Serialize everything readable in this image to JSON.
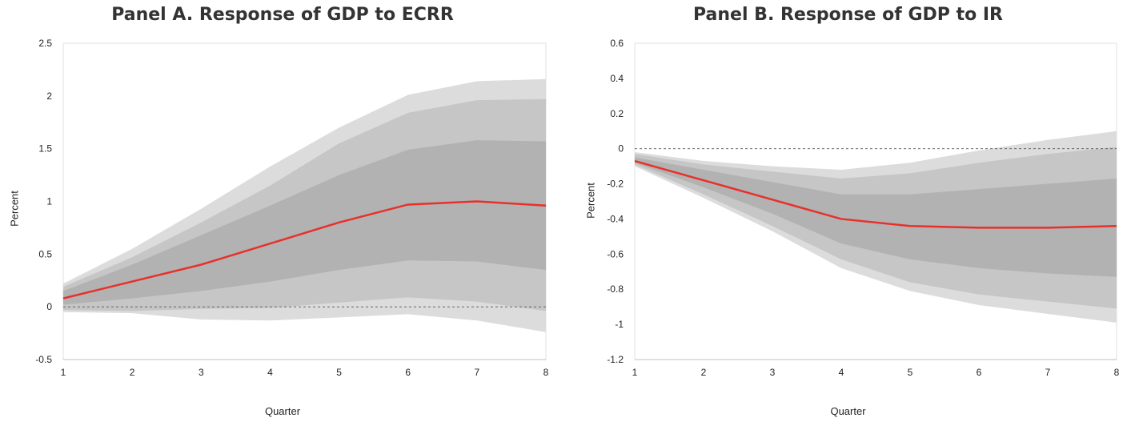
{
  "chart_data": [
    {
      "type": "area",
      "title": "Panel A. Response of GDP to ECRR",
      "xlabel": "Quarter",
      "ylabel": "Percent",
      "x": [
        1,
        2,
        3,
        4,
        5,
        6,
        7,
        8
      ],
      "xticks": [
        "1",
        "2",
        "3",
        "4",
        "5",
        "6",
        "7",
        "8"
      ],
      "ylim": [
        -0.5,
        2.5
      ],
      "yticks": [
        "-0.5",
        "0",
        "0.5",
        "1",
        "1.5",
        "2",
        "2.5"
      ],
      "ytick_values": [
        -0.5,
        0,
        0.5,
        1,
        1.5,
        2,
        2.5
      ],
      "bands": [
        {
          "lower": [
            -0.05,
            -0.06,
            -0.12,
            -0.13,
            -0.1,
            -0.07,
            -0.13,
            -0.24
          ],
          "upper": [
            0.22,
            0.55,
            0.93,
            1.33,
            1.7,
            2.01,
            2.14,
            2.16
          ],
          "color": "#dcdcdc"
        },
        {
          "lower": [
            -0.03,
            -0.04,
            -0.02,
            -0.01,
            0.04,
            0.09,
            0.05,
            -0.04
          ],
          "upper": [
            0.19,
            0.47,
            0.8,
            1.15,
            1.55,
            1.84,
            1.96,
            1.97
          ],
          "color": "#c6c6c6"
        },
        {
          "lower": [
            0.02,
            0.08,
            0.15,
            0.24,
            0.35,
            0.44,
            0.43,
            0.35
          ],
          "upper": [
            0.15,
            0.4,
            0.68,
            0.96,
            1.25,
            1.49,
            1.58,
            1.57
          ],
          "color": "#b2b2b2"
        }
      ],
      "series": [
        {
          "values": [
            0.08,
            0.24,
            0.4,
            0.6,
            0.8,
            0.97,
            1.0,
            0.96
          ],
          "color": "#e8302b"
        }
      ],
      "zero_line": 0,
      "grid": false
    },
    {
      "type": "area",
      "title": "Panel B. Response of GDP to IR",
      "xlabel": "Quarter",
      "ylabel": "Percent",
      "x": [
        1,
        2,
        3,
        4,
        5,
        6,
        7,
        8
      ],
      "xticks": [
        "1",
        "2",
        "3",
        "4",
        "5",
        "6",
        "7",
        "8"
      ],
      "ylim": [
        -1.2,
        0.6
      ],
      "yticks": [
        "-1.2",
        "-1",
        "-0.8",
        "-0.6",
        "-0.4",
        "-0.2",
        "0",
        "0.2",
        "0.4",
        "0.6"
      ],
      "ytick_values": [
        -1.2,
        -1,
        -0.8,
        -0.6,
        -0.4,
        -0.2,
        0,
        0.2,
        0.4,
        0.6
      ],
      "bands": [
        {
          "lower": [
            -0.1,
            -0.28,
            -0.47,
            -0.68,
            -0.81,
            -0.89,
            -0.94,
            -0.99
          ],
          "upper": [
            -0.02,
            -0.07,
            -0.1,
            -0.12,
            -0.08,
            -0.01,
            0.05,
            0.1
          ],
          "color": "#dcdcdc"
        },
        {
          "lower": [
            -0.09,
            -0.26,
            -0.44,
            -0.63,
            -0.76,
            -0.83,
            -0.87,
            -0.91
          ],
          "upper": [
            -0.03,
            -0.09,
            -0.13,
            -0.17,
            -0.14,
            -0.08,
            -0.03,
            0.01
          ],
          "color": "#c6c6c6"
        },
        {
          "lower": [
            -0.08,
            -0.22,
            -0.37,
            -0.54,
            -0.63,
            -0.68,
            -0.71,
            -0.73
          ],
          "upper": [
            -0.05,
            -0.12,
            -0.19,
            -0.26,
            -0.26,
            -0.23,
            -0.2,
            -0.17
          ],
          "color": "#b2b2b2"
        }
      ],
      "series": [
        {
          "values": [
            -0.07,
            -0.18,
            -0.29,
            -0.4,
            -0.44,
            -0.45,
            -0.45,
            -0.44
          ],
          "color": "#e8302b"
        }
      ],
      "zero_line": 0,
      "grid": false
    }
  ]
}
